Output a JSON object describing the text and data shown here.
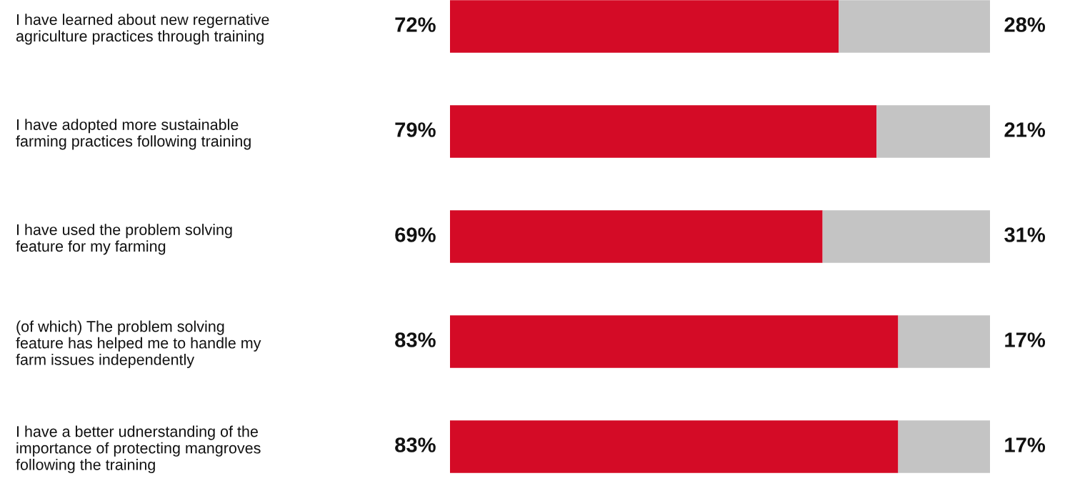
{
  "chart_data": {
    "type": "bar",
    "orientation": "horizontal",
    "stacked": true,
    "tick_labels": "y",
    "xlim": [
      0,
      100
    ],
    "categories": [
      "I have learned about new regernative\nagriculture practices through training",
      "I have adopted more sustainable\nfarming practices following training",
      "I have used the problem solving\nfeature for my farming",
      "(of which) The problem solving\nfeature has helped me to handle my\nfarm issues independently",
      "I have a better udnerstanding of the\nimportance of protecting mangroves\nfollowing the training"
    ],
    "series": [
      {
        "color": "#d40b26",
        "values": [
          72,
          79,
          69,
          83,
          83
        ],
        "value_labels": [
          "72%",
          "79%",
          "69%",
          "83%",
          "83%"
        ]
      },
      {
        "color": "#c4c4c4",
        "values": [
          28,
          21,
          31,
          17,
          17
        ],
        "value_labels": [
          "28%",
          "21%",
          "31%",
          "17%",
          "17%"
        ]
      }
    ]
  }
}
